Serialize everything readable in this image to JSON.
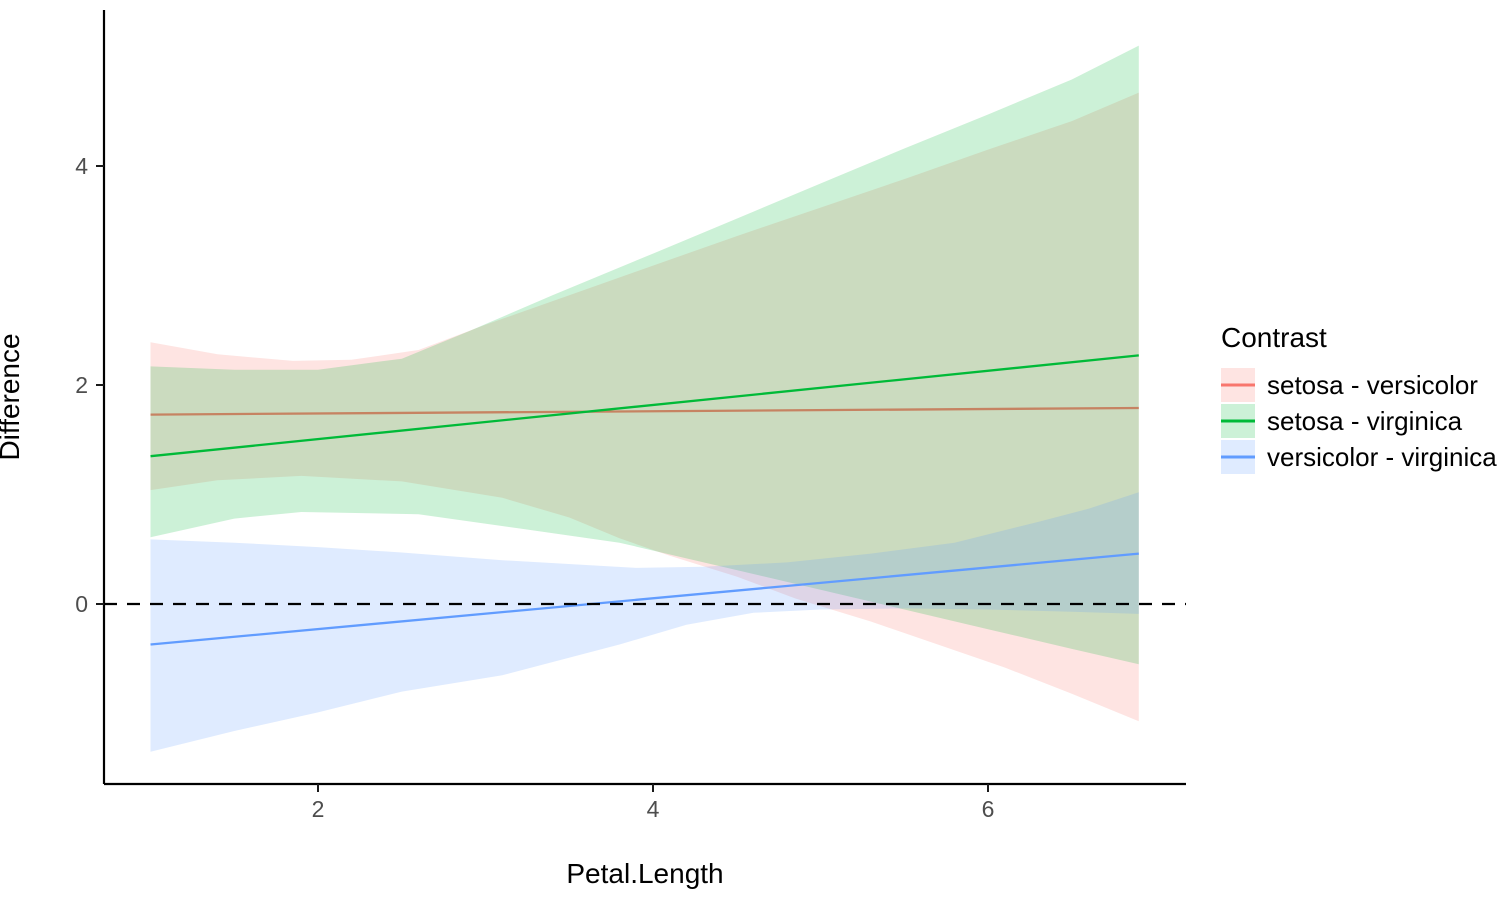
{
  "figure": {
    "background": "#ffffff",
    "axis_line_color": "#000000",
    "tick_color": "#1a1a1a",
    "tick_label_color": "#4d4d4d"
  },
  "chart_data": {
    "type": "line",
    "title": "",
    "xlabel": "Petal.Length",
    "ylabel": "Difference",
    "legend_title": "Contrast",
    "legend_position": "right",
    "grid": false,
    "x_ticks": [
      2,
      4,
      6
    ],
    "y_ticks": [
      0,
      2,
      4
    ],
    "xlim": [
      0.72,
      7.18
    ],
    "ylim": [
      -1.64,
      5.43
    ],
    "x_data_range": [
      1.0,
      6.9
    ],
    "ribbon_alpha": 0.2,
    "reference_line": {
      "y": 0,
      "style": "dashed",
      "color": "#000000"
    },
    "series": [
      {
        "name": "setosa - versicolor",
        "color": "#F8766D",
        "line": [
          [
            1.0,
            1.73
          ],
          [
            6.9,
            1.79
          ]
        ],
        "ribbon_top": [
          [
            1.0,
            2.39
          ],
          [
            1.4,
            2.28
          ],
          [
            1.85,
            2.22
          ],
          [
            2.2,
            2.23
          ],
          [
            2.6,
            2.32
          ],
          [
            3.0,
            2.55
          ],
          [
            3.5,
            2.82
          ],
          [
            4.0,
            3.09
          ],
          [
            4.5,
            3.36
          ],
          [
            5.0,
            3.62
          ],
          [
            5.5,
            3.88
          ],
          [
            6.0,
            4.15
          ],
          [
            6.5,
            4.41
          ],
          [
            6.9,
            4.67
          ]
        ],
        "ribbon_bottom": [
          [
            1.0,
            1.04
          ],
          [
            1.4,
            1.13
          ],
          [
            1.9,
            1.17
          ],
          [
            2.5,
            1.12
          ],
          [
            3.1,
            0.97
          ],
          [
            3.5,
            0.79
          ],
          [
            3.8,
            0.6
          ],
          [
            4.1,
            0.44
          ],
          [
            4.5,
            0.25
          ],
          [
            4.85,
            0.05
          ],
          [
            5.3,
            -0.16
          ],
          [
            5.7,
            -0.37
          ],
          [
            6.1,
            -0.58
          ],
          [
            6.5,
            -0.82
          ],
          [
            6.9,
            -1.07
          ]
        ]
      },
      {
        "name": "setosa - virginica",
        "color": "#00BA38",
        "line": [
          [
            1.0,
            1.35
          ],
          [
            6.9,
            2.27
          ]
        ],
        "ribbon_top": [
          [
            1.0,
            2.17
          ],
          [
            1.5,
            2.14
          ],
          [
            2.0,
            2.14
          ],
          [
            2.5,
            2.24
          ],
          [
            2.9,
            2.49
          ],
          [
            3.4,
            2.82
          ],
          [
            4.0,
            3.2
          ],
          [
            4.5,
            3.52
          ],
          [
            5.0,
            3.84
          ],
          [
            5.5,
            4.16
          ],
          [
            6.0,
            4.47
          ],
          [
            6.5,
            4.79
          ],
          [
            6.9,
            5.1
          ]
        ],
        "ribbon_bottom": [
          [
            1.0,
            0.61
          ],
          [
            1.5,
            0.78
          ],
          [
            1.9,
            0.84
          ],
          [
            2.6,
            0.82
          ],
          [
            3.2,
            0.69
          ],
          [
            3.8,
            0.56
          ],
          [
            4.5,
            0.31
          ],
          [
            5.0,
            0.13
          ],
          [
            5.5,
            -0.05
          ],
          [
            6.0,
            -0.23
          ],
          [
            6.5,
            -0.41
          ],
          [
            6.9,
            -0.55
          ]
        ]
      },
      {
        "name": "versicolor - virginica",
        "color": "#619CFF",
        "line": [
          [
            1.0,
            -0.37
          ],
          [
            6.9,
            0.46
          ]
        ],
        "ribbon_top": [
          [
            1.0,
            0.59
          ],
          [
            1.5,
            0.56
          ],
          [
            2.0,
            0.52
          ],
          [
            2.5,
            0.47
          ],
          [
            3.1,
            0.4
          ],
          [
            3.9,
            0.33
          ],
          [
            4.3,
            0.34
          ],
          [
            4.8,
            0.38
          ],
          [
            5.3,
            0.46
          ],
          [
            5.8,
            0.56
          ],
          [
            6.3,
            0.75
          ],
          [
            6.6,
            0.87
          ],
          [
            6.9,
            1.02
          ]
        ],
        "ribbon_bottom": [
          [
            1.0,
            -1.35
          ],
          [
            1.5,
            -1.16
          ],
          [
            2.0,
            -0.99
          ],
          [
            2.5,
            -0.8
          ],
          [
            3.1,
            -0.65
          ],
          [
            3.8,
            -0.37
          ],
          [
            4.2,
            -0.19
          ],
          [
            4.6,
            -0.08
          ],
          [
            5.0,
            -0.05
          ],
          [
            5.5,
            -0.04
          ],
          [
            6.0,
            -0.05
          ],
          [
            6.5,
            -0.07
          ],
          [
            6.9,
            -0.09
          ]
        ]
      }
    ]
  }
}
